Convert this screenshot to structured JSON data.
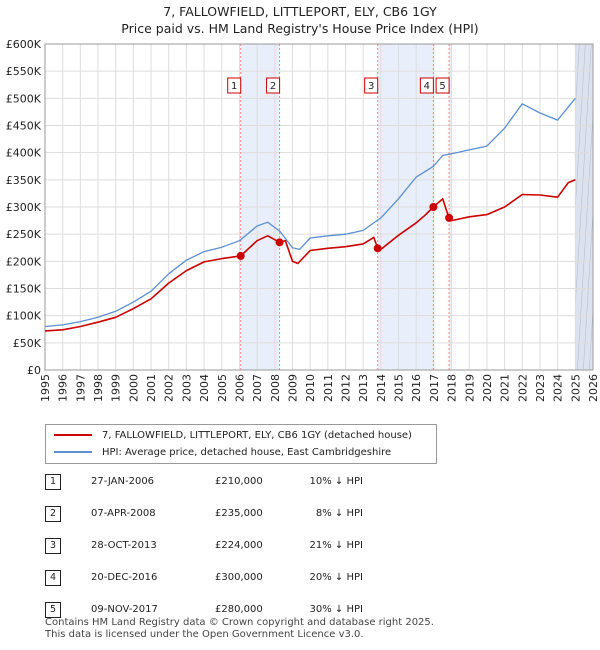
{
  "title_line1": "7, FALLOWFIELD, LITTLEPORT, ELY, CB6 1GY",
  "title_line2": "Price paid vs. HM Land Registry's House Price Index (HPI)",
  "colors": {
    "property": "#cc0000",
    "hpi": "#5b8fd0",
    "shade": "#e8eefa",
    "marker": "#ff8080",
    "grid": "#dddddd"
  },
  "chart_data": {
    "type": "line",
    "title": "7, FALLOWFIELD, LITTLEPORT, ELY, CB6 1GY",
    "subtitle": "Price paid vs. HM Land Registry's House Price Index (HPI)",
    "xlim": [
      1995,
      2026
    ],
    "ylim": [
      0,
      600000
    ],
    "x_ticks": [
      "1995",
      "1996",
      "1997",
      "1998",
      "1999",
      "2000",
      "2001",
      "2002",
      "2003",
      "2004",
      "2005",
      "2006",
      "2007",
      "2008",
      "2009",
      "2010",
      "2011",
      "2012",
      "2013",
      "2014",
      "2015",
      "2016",
      "2017",
      "2018",
      "2019",
      "2020",
      "2021",
      "2022",
      "2023",
      "2024",
      "2025",
      "2026"
    ],
    "y_ticks": [
      {
        "value": 0,
        "label": "£0"
      },
      {
        "value": 50000,
        "label": "£50K"
      },
      {
        "value": 100000,
        "label": "£100K"
      },
      {
        "value": 150000,
        "label": "£150K"
      },
      {
        "value": 200000,
        "label": "£200K"
      },
      {
        "value": 250000,
        "label": "£250K"
      },
      {
        "value": 300000,
        "label": "£300K"
      },
      {
        "value": 350000,
        "label": "£350K"
      },
      {
        "value": 400000,
        "label": "£400K"
      },
      {
        "value": 450000,
        "label": "£450K"
      },
      {
        "value": 500000,
        "label": "£500K"
      },
      {
        "value": 550000,
        "label": "£550K"
      },
      {
        "value": 600000,
        "label": "£600K"
      }
    ],
    "grid": true,
    "legend_position": "bottom",
    "series": [
      {
        "name": "7, FALLOWFIELD, LITTLEPORT, ELY, CB6 1GY (detached house)",
        "points": [
          [
            1995,
            72000
          ],
          [
            1996,
            74000
          ],
          [
            1997,
            80000
          ],
          [
            1998,
            88000
          ],
          [
            1999,
            97000
          ],
          [
            2000,
            113000
          ],
          [
            2001,
            131000
          ],
          [
            2002,
            160000
          ],
          [
            2003,
            183000
          ],
          [
            2004,
            199000
          ],
          [
            2005,
            205000
          ],
          [
            2006.07,
            210000
          ],
          [
            2007,
            238000
          ],
          [
            2007.6,
            247000
          ],
          [
            2008.27,
            235000
          ],
          [
            2008.6,
            238000
          ],
          [
            2009,
            200000
          ],
          [
            2009.3,
            196000
          ],
          [
            2010,
            220000
          ],
          [
            2011,
            224000
          ],
          [
            2012,
            227000
          ],
          [
            2013,
            232000
          ],
          [
            2013.6,
            244000
          ],
          [
            2013.82,
            224000
          ],
          [
            2014,
            222000
          ],
          [
            2015,
            248000
          ],
          [
            2016,
            271000
          ],
          [
            2016.5,
            285000
          ],
          [
            2016.97,
            300000
          ],
          [
            2017.5,
            315000
          ],
          [
            2017.85,
            280000
          ],
          [
            2018,
            275000
          ],
          [
            2019,
            282000
          ],
          [
            2020,
            286000
          ],
          [
            2021,
            300000
          ],
          [
            2022,
            323000
          ],
          [
            2023,
            322000
          ],
          [
            2024,
            318000
          ],
          [
            2024.6,
            345000
          ],
          [
            2025,
            350000
          ]
        ]
      },
      {
        "name": "HPI: Average price, detached house, East Cambridgeshire",
        "points": [
          [
            1995,
            80000
          ],
          [
            1996,
            83000
          ],
          [
            1997,
            89000
          ],
          [
            1998,
            97000
          ],
          [
            1999,
            108000
          ],
          [
            2000,
            125000
          ],
          [
            2001,
            145000
          ],
          [
            2002,
            177000
          ],
          [
            2003,
            202000
          ],
          [
            2004,
            218000
          ],
          [
            2005,
            226000
          ],
          [
            2006,
            238000
          ],
          [
            2007,
            265000
          ],
          [
            2007.6,
            272000
          ],
          [
            2008.3,
            255000
          ],
          [
            2009,
            225000
          ],
          [
            2009.4,
            222000
          ],
          [
            2010,
            243000
          ],
          [
            2011,
            247000
          ],
          [
            2012,
            250000
          ],
          [
            2013,
            257000
          ],
          [
            2014,
            280000
          ],
          [
            2015,
            315000
          ],
          [
            2016,
            355000
          ],
          [
            2016.97,
            375000
          ],
          [
            2017.5,
            395000
          ],
          [
            2018,
            398000
          ],
          [
            2019,
            405000
          ],
          [
            2020,
            412000
          ],
          [
            2021,
            445000
          ],
          [
            2022,
            490000
          ],
          [
            2023,
            473000
          ],
          [
            2024,
            460000
          ],
          [
            2024.5,
            480000
          ],
          [
            2025,
            500000
          ]
        ]
      }
    ],
    "transactions": [
      {
        "num": "1",
        "x": 2006.07,
        "y": 210000,
        "date": "27-JAN-2006",
        "price": "£210,000",
        "hpi": "10% ↓ HPI"
      },
      {
        "num": "2",
        "x": 2008.27,
        "y": 235000,
        "date": "07-APR-2008",
        "price": "£235,000",
        "hpi": "8% ↓ HPI"
      },
      {
        "num": "3",
        "x": 2013.82,
        "y": 224000,
        "date": "28-OCT-2013",
        "price": "£224,000",
        "hpi": "21% ↓ HPI"
      },
      {
        "num": "4",
        "x": 2016.97,
        "y": 300000,
        "date": "20-DEC-2016",
        "price": "£300,000",
        "hpi": "20% ↓ HPI"
      },
      {
        "num": "5",
        "x": 2017.86,
        "y": 280000,
        "date": "09-NOV-2017",
        "price": "£280,000",
        "hpi": "30% ↓ HPI"
      }
    ],
    "shaded_periods": [
      [
        2006.07,
        2008.27
      ],
      [
        2013.82,
        2016.97
      ],
      [
        2017.86,
        2018.0
      ],
      [
        2025.0,
        2026.0
      ]
    ]
  },
  "legend": {
    "property_label": "7, FALLOWFIELD, LITTLEPORT, ELY, CB6 1GY (detached house)",
    "hpi_label": "HPI: Average price, detached house, East Cambridgeshire"
  },
  "footer": {
    "line1": "Contains HM Land Registry data © Crown copyright and database right 2025.",
    "line2": "This data is licensed under the Open Government Licence v3.0."
  }
}
